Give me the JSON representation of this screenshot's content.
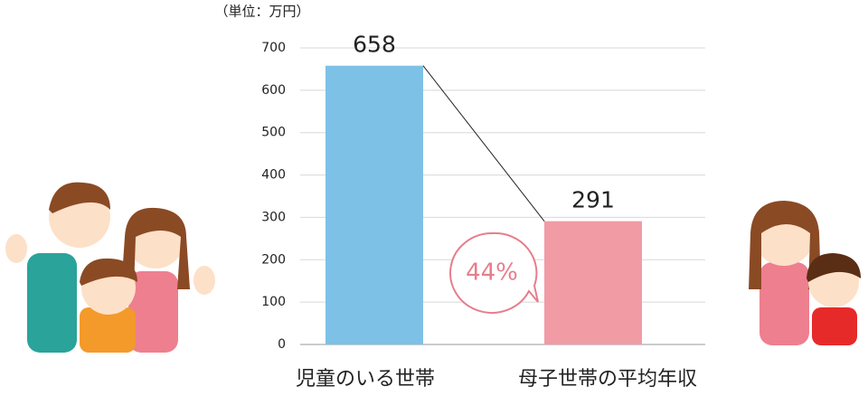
{
  "chart_data": {
    "type": "bar",
    "unit_label": "（単位：万円）",
    "categories": [
      "児童のいる世帯",
      "母子世帯の平均年収"
    ],
    "values": [
      658,
      291
    ],
    "colors": [
      "#7dc1e7",
      "#f19ba5"
    ],
    "ylim": [
      0,
      700
    ],
    "yticks": [
      0,
      100,
      200,
      300,
      400,
      500,
      600,
      700
    ],
    "grid": true,
    "annotation": "44%"
  }
}
